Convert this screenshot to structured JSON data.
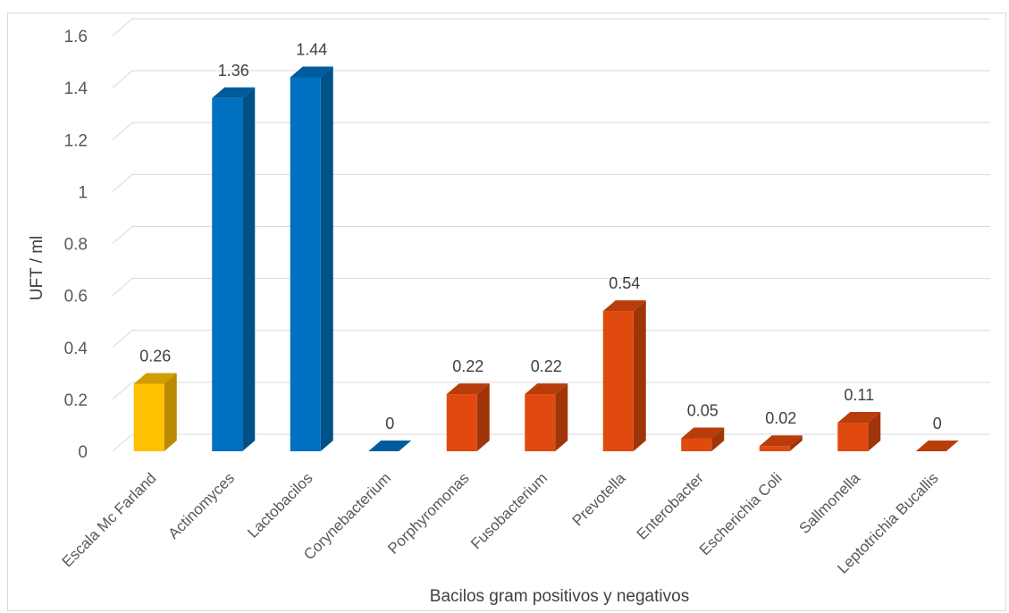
{
  "chart_data": {
    "type": "bar",
    "title": "",
    "xlabel": "Bacilos gram positivos y negativos",
    "ylabel": "UFT / ml",
    "ylim": [
      0,
      1.6
    ],
    "yticks": [
      0,
      0.2,
      0.4,
      0.6,
      0.8,
      1,
      1.2,
      1.4,
      1.6
    ],
    "ytick_labels": [
      "0",
      "0.2",
      "0.4",
      "0.6",
      "0.8",
      "1",
      "1.2",
      "1.4",
      "1.6"
    ],
    "grid": true,
    "legend": false,
    "categories": [
      "Escala Mc Farland",
      "Actinomyces",
      "Lactobacilos",
      "Corynebacterium",
      "Porphyromonas",
      "Fusobacterium",
      "Prevotella",
      "Enterobacter",
      "Escherichia Coli",
      "Sallmonella",
      "Leptotrichia Bucallis"
    ],
    "values": [
      0.26,
      1.36,
      1.44,
      0,
      0.22,
      0.22,
      0.54,
      0.05,
      0.02,
      0.11,
      0
    ],
    "data_labels": [
      "0.26",
      "1.36",
      "1.44",
      "0",
      "0.22",
      "0.22",
      "0.54",
      "0.05",
      "0.02",
      "0.11",
      "0"
    ],
    "colors": [
      "#FFC000",
      "#0070C0",
      "#0070C0",
      "#0070C0",
      "#E04A0E",
      "#E04A0E",
      "#E04A0E",
      "#E04A0E",
      "#E04A0E",
      "#E04A0E",
      "#E04A0E"
    ]
  }
}
